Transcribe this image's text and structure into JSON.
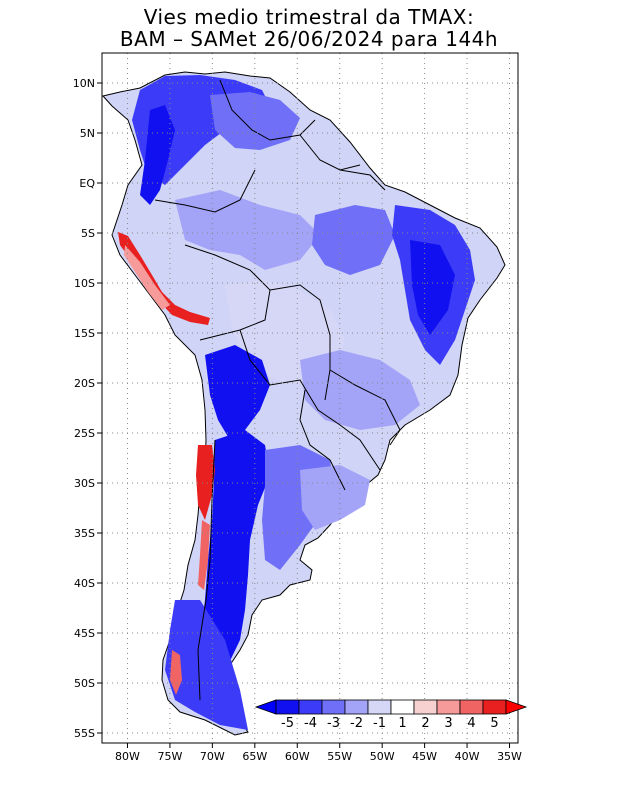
{
  "title": {
    "line1": "Vies medio trimestral da TMAX:",
    "line2": "BAM – SAMet 26/06/2024  para 144h"
  },
  "map": {
    "lon_range": [
      -83,
      -34
    ],
    "lat_range": [
      -56,
      13
    ],
    "lon_grid": [
      -80,
      -75,
      -70,
      -65,
      -60,
      -55,
      -50,
      -45,
      -40,
      -35
    ],
    "lat_grid": [
      10,
      5,
      0,
      -5,
      -10,
      -15,
      -20,
      -25,
      -30,
      -35,
      -40,
      -45,
      -50,
      -55
    ],
    "x_tick_labels": [
      "80W",
      "75W",
      "70W",
      "65W",
      "60W",
      "55W",
      "50W",
      "45W",
      "40W",
      "35W"
    ],
    "y_tick_labels": [
      "10N",
      "5N",
      "EQ",
      "5S",
      "10S",
      "15S",
      "20S",
      "25S",
      "30S",
      "35S",
      "40S",
      "45S",
      "50S",
      "55S"
    ],
    "grid": "dotted"
  },
  "colorbar": {
    "labels": [
      "-5",
      "-4",
      "-3",
      "-2",
      "-1",
      "1",
      "2",
      "3",
      "4",
      "5"
    ],
    "colors": [
      "#1010f0",
      "#3c3cf8",
      "#6f6ff7",
      "#a3a3f7",
      "#d6d6f7",
      "#ffffff",
      "#f7d0d0",
      "#f79a9a",
      "#f06464",
      "#e82020"
    ],
    "end_colors": [
      "#0000ff",
      "#ff0000"
    ]
  }
}
